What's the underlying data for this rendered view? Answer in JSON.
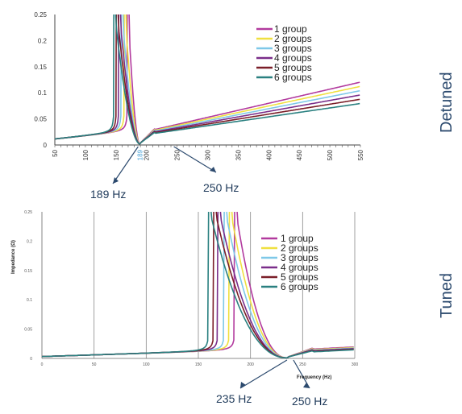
{
  "chart_data": [
    {
      "type": "line",
      "side_label": "Detuned",
      "xlim": [
        50,
        550
      ],
      "ylim": [
        0,
        0.25
      ],
      "x_ticks": [
        "50",
        "100",
        "150",
        "189",
        "200",
        "250",
        "300",
        "350",
        "400",
        "450",
        "500",
        "550"
      ],
      "y_ticks": [
        "0",
        "0.05",
        "0.1",
        "0.15",
        "0.2",
        "0.25"
      ],
      "grid": false,
      "legend_position": "top-right",
      "series": [
        {
          "name": "1 group",
          "color": "#b23a9e",
          "resonance": 170,
          "slope": 0.00027
        },
        {
          "name": "2 groups",
          "color": "#f0e040",
          "resonance": 165,
          "slope": 0.00025
        },
        {
          "name": "3 groups",
          "color": "#7ec8e8",
          "resonance": 160,
          "slope": 0.00023
        },
        {
          "name": "4 groups",
          "color": "#7a2e8a",
          "resonance": 156,
          "slope": 0.00021
        },
        {
          "name": "5 groups",
          "color": "#7a1e28",
          "resonance": 152,
          "slope": 0.00019
        },
        {
          "name": "6 groups",
          "color": "#2a8080",
          "resonance": 148,
          "slope": 0.00017
        }
      ],
      "annotations": [
        {
          "label": "189 Hz",
          "x": 189
        },
        {
          "label": "250 Hz",
          "x": 250
        }
      ]
    },
    {
      "type": "line",
      "side_label": "Tuned",
      "ylabel": "Impedance (Ω)",
      "xlabel": "Frequency (Hz)",
      "xlim": [
        0,
        300
      ],
      "ylim": [
        0,
        0.25
      ],
      "y_ticks": [
        "0",
        "0.05",
        "0.1",
        "0.15",
        "0.2",
        "0.25"
      ],
      "x_ticks": [
        "0",
        "50",
        "100",
        "150",
        "200",
        "250",
        "300"
      ],
      "grid": true,
      "legend_position": "top-right",
      "series": [
        {
          "name": "1 group",
          "color": "#b23a9e",
          "resonance": 186
        },
        {
          "name": "2 groups",
          "color": "#f0e040",
          "resonance": 181
        },
        {
          "name": "3 groups",
          "color": "#7ec8e8",
          "resonance": 176
        },
        {
          "name": "4 groups",
          "color": "#7a2e8a",
          "resonance": 170
        },
        {
          "name": "5 groups",
          "color": "#7a1e28",
          "resonance": 166
        },
        {
          "name": "6 groups",
          "color": "#2a8080",
          "resonance": 161
        }
      ],
      "annotations": [
        {
          "label": "235 Hz",
          "x": 235
        },
        {
          "label": "250 Hz",
          "x": 250
        }
      ]
    }
  ]
}
